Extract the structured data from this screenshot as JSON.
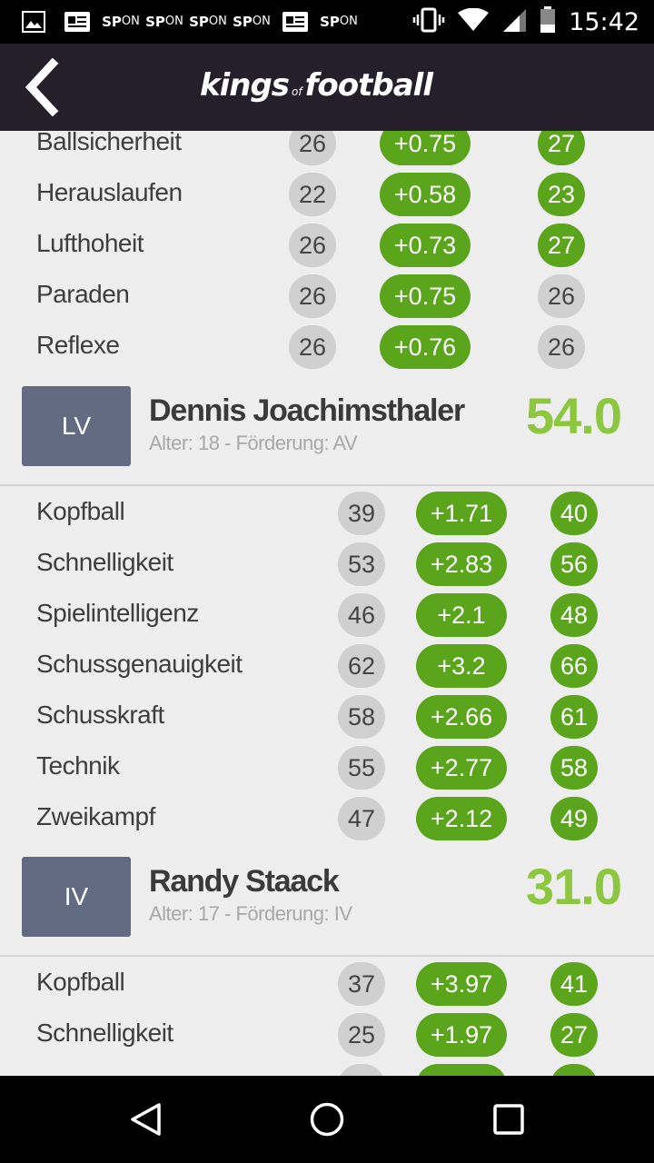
{
  "status_bar": {
    "sp_label": "SP",
    "sp_on": "ON",
    "time": "15:42",
    "icons": [
      "image-icon",
      "news-icon",
      "sp-on-icon",
      "sp-on-icon",
      "sp-on-icon",
      "sp-on-icon",
      "news-icon",
      "sp-on-icon",
      "vibrate-icon",
      "wifi-icon",
      "signal-icon",
      "battery-icon"
    ]
  },
  "header": {
    "logo_kings": "kings",
    "logo_of": "of",
    "logo_football": "football"
  },
  "top_stats": [
    {
      "name": "Ballsicherheit",
      "current": "26",
      "delta": "+0.75",
      "next": "27",
      "improved": true
    },
    {
      "name": "Herauslaufen",
      "current": "22",
      "delta": "+0.58",
      "next": "23",
      "improved": true
    },
    {
      "name": "Lufthoheit",
      "current": "26",
      "delta": "+0.73",
      "next": "27",
      "improved": true
    },
    {
      "name": "Paraden",
      "current": "26",
      "delta": "+0.75",
      "next": "26",
      "improved": false
    },
    {
      "name": "Reflexe",
      "current": "26",
      "delta": "+0.76",
      "next": "26",
      "improved": false
    }
  ],
  "players": [
    {
      "position": "LV",
      "name": "Dennis Joachimsthaler",
      "info": "Alter: 18 - Förderung: AV",
      "score": "54.0",
      "stats": [
        {
          "name": "Kopfball",
          "current": "39",
          "delta": "+1.71",
          "next": "40",
          "improved": true
        },
        {
          "name": "Schnelligkeit",
          "current": "53",
          "delta": "+2.83",
          "next": "56",
          "improved": true
        },
        {
          "name": "Spielintelligenz",
          "current": "46",
          "delta": "+2.1",
          "next": "48",
          "improved": true
        },
        {
          "name": "Schussgenauigkeit",
          "current": "62",
          "delta": "+3.2",
          "next": "66",
          "improved": true
        },
        {
          "name": "Schusskraft",
          "current": "58",
          "delta": "+2.66",
          "next": "61",
          "improved": true
        },
        {
          "name": "Technik",
          "current": "55",
          "delta": "+2.77",
          "next": "58",
          "improved": true
        },
        {
          "name": "Zweikampf",
          "current": "47",
          "delta": "+2.12",
          "next": "49",
          "improved": true
        }
      ]
    },
    {
      "position": "IV",
      "name": "Randy Staack",
      "info": "Alter: 17 - Förderung: IV",
      "score": "31.0",
      "stats": [
        {
          "name": "Kopfball",
          "current": "37",
          "delta": "+3.97",
          "next": "41",
          "improved": true
        },
        {
          "name": "Schnelligkeit",
          "current": "25",
          "delta": "+1.97",
          "next": "27",
          "improved": true
        }
      ]
    }
  ],
  "colors": {
    "header_bg": "#241f2b",
    "green": "#5aa51c",
    "score_green": "#8dc63f",
    "position_badge": "#626b81",
    "neutral_pill": "#d0d0d0"
  }
}
